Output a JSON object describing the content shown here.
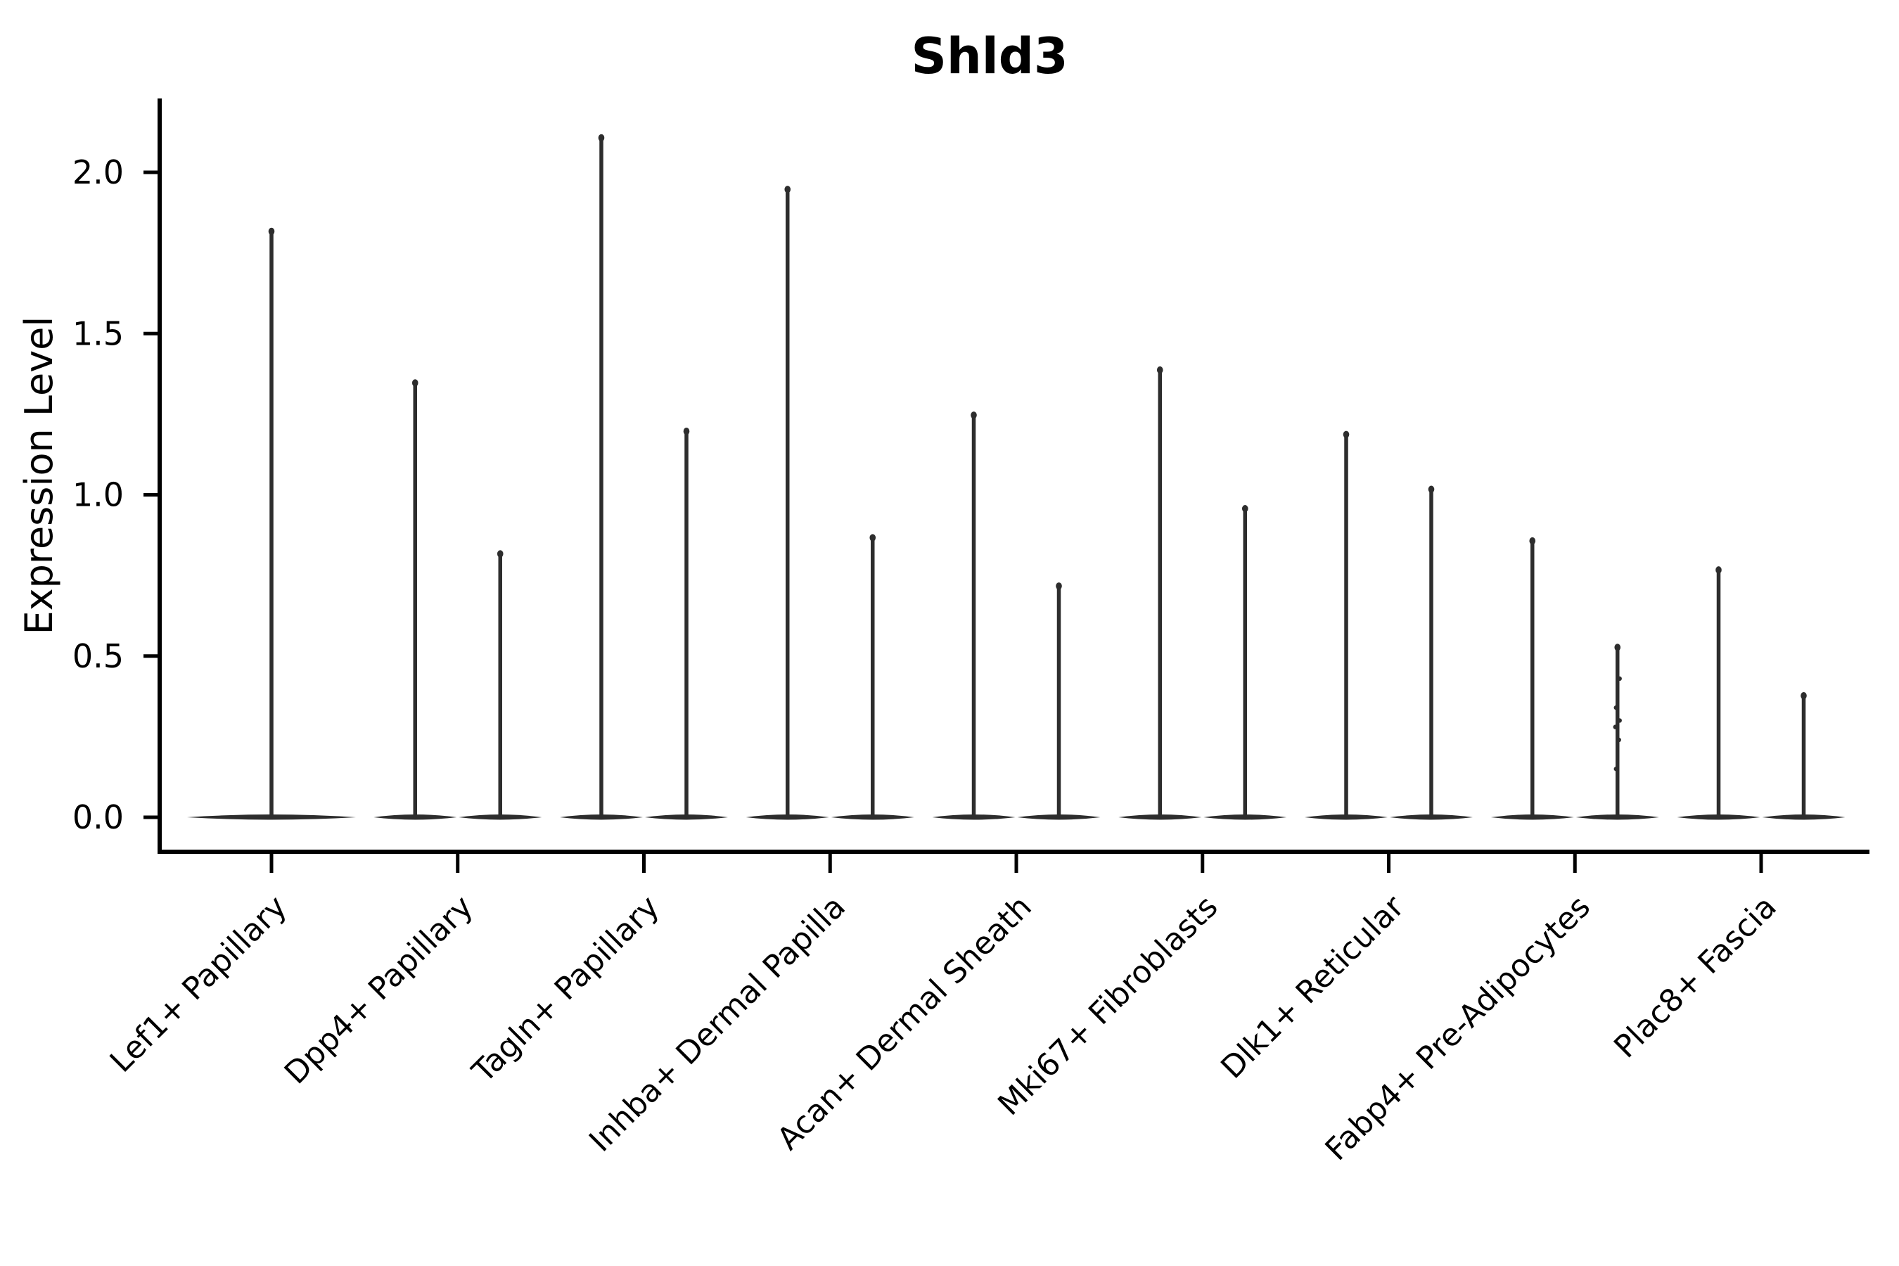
{
  "title": "Shld3",
  "y_axis": {
    "label": "Expression Level",
    "tick_labels": [
      "0.0",
      "0.5",
      "1.0",
      "1.5",
      "2.0"
    ],
    "tick_values": [
      0.0,
      0.5,
      1.0,
      1.5,
      2.0
    ]
  },
  "colors": {
    "violin": "#2d2d2d",
    "axis": "#000000",
    "text": "#000000",
    "background": "#ffffff"
  },
  "chart_data": {
    "type": "violin",
    "title": "Shld3",
    "xlabel": "",
    "ylabel": "Expression Level",
    "ylim": [
      -0.11,
      2.23
    ],
    "yticks": [
      0.0,
      0.5,
      1.0,
      1.5,
      2.0
    ],
    "grid": false,
    "legend": "none",
    "baseline_value": 0.0,
    "note_shape": "each violin is massed at 0 expression with a thin spike to its maximum value",
    "categories": [
      "Lef1+ Papillary",
      "Dpp4+ Papillary",
      "Tagln+ Papillary",
      "Inhba+ Dermal Papilla",
      "Acan+ Dermal Sheath",
      "Mki67+ Fibroblasts",
      "Dlk1+ Reticular",
      "Fabp4+ Pre-Adipocytes",
      "Plac8+ Fascia"
    ],
    "series": [
      {
        "category": "Lef1+ Papillary",
        "violins": [
          {
            "min": 0,
            "max": 1.83
          }
        ]
      },
      {
        "category": "Dpp4+ Papillary",
        "violins": [
          {
            "min": 0,
            "max": 1.36
          },
          {
            "min": 0,
            "max": 0.83
          }
        ]
      },
      {
        "category": "Tagln+ Papillary",
        "violins": [
          {
            "min": 0,
            "max": 2.12
          },
          {
            "min": 0,
            "max": 1.21
          }
        ]
      },
      {
        "category": "Inhba+ Dermal Papilla",
        "violins": [
          {
            "min": 0,
            "max": 1.96
          },
          {
            "min": 0,
            "max": 0.88
          }
        ]
      },
      {
        "category": "Acan+ Dermal Sheath",
        "violins": [
          {
            "min": 0,
            "max": 1.26
          },
          {
            "min": 0,
            "max": 0.73
          }
        ]
      },
      {
        "category": "Mki67+ Fibroblasts",
        "violins": [
          {
            "min": 0,
            "max": 1.4
          },
          {
            "min": 0,
            "max": 0.97
          }
        ]
      },
      {
        "category": "Dlk1+ Reticular",
        "violins": [
          {
            "min": 0,
            "max": 1.2
          },
          {
            "min": 0,
            "max": 1.03
          }
        ]
      },
      {
        "category": "Fabp4+ Pre-Adipocytes",
        "violins": [
          {
            "min": 0,
            "max": 0.87
          },
          {
            "min": 0,
            "max": 0.54,
            "points": [
              0.43,
              0.34,
              0.3,
              0.28,
              0.24,
              0.15
            ]
          }
        ]
      },
      {
        "category": "Plac8+ Fascia",
        "violins": [
          {
            "min": 0,
            "max": 0.78
          },
          {
            "min": 0,
            "max": 0.39
          }
        ]
      }
    ]
  }
}
